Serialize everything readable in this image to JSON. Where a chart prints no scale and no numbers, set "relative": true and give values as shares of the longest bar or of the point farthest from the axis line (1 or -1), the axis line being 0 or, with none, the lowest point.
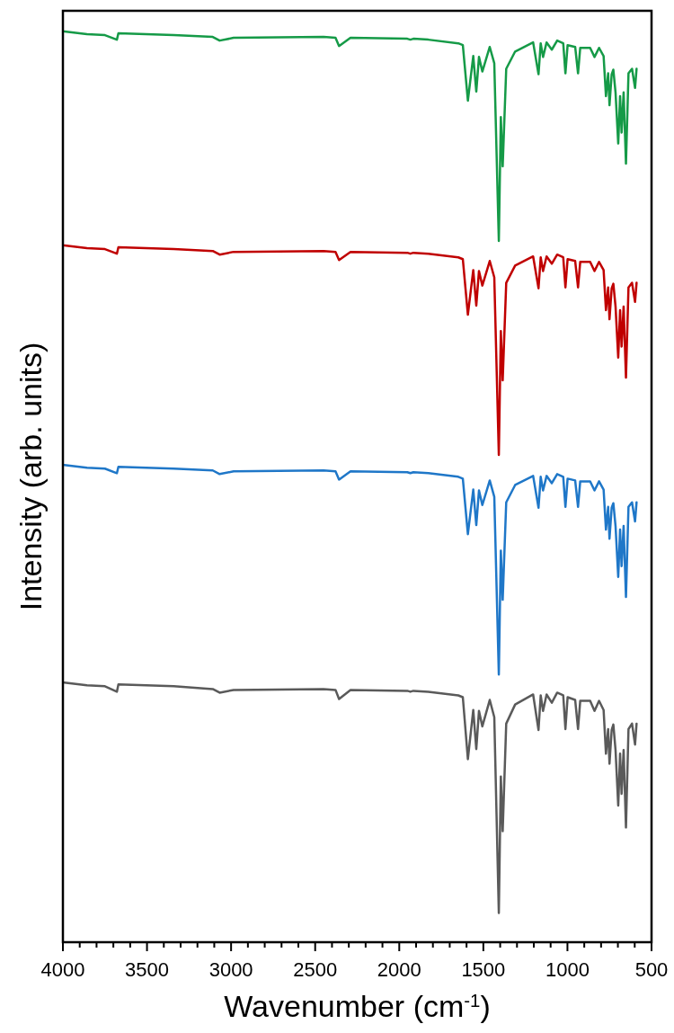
{
  "chart_data": {
    "type": "line",
    "relative": true,
    "xlabel": "Wavenumber (cm$^{-1}$)",
    "ylabel": "Intensity (arb. units)",
    "xlim": [
      4000,
      500
    ],
    "xticks": [
      4000,
      {
        "value": 3900,
        "label": null
      },
      {
        "value": 3800,
        "label": null
      },
      {
        "value": 3700,
        "label": null
      },
      {
        "value": 3600,
        "label": null
      },
      3500,
      {
        "value": 3400,
        "label": null
      },
      {
        "value": 3300,
        "label": null
      },
      {
        "value": 3200,
        "label": null
      },
      {
        "value": 3100,
        "label": null
      },
      3000,
      {
        "value": 2900,
        "label": null
      },
      {
        "value": 2800,
        "label": null
      },
      {
        "value": 2700,
        "label": null
      },
      {
        "value": 2600,
        "label": null
      },
      2500,
      {
        "value": 2400,
        "label": null
      },
      {
        "value": 2300,
        "label": null
      },
      {
        "value": 2200,
        "label": null
      },
      {
        "value": 2100,
        "label": null
      },
      2000,
      {
        "value": 1900,
        "label": null
      },
      {
        "value": 1800,
        "label": null
      },
      {
        "value": 1700,
        "label": null
      },
      {
        "value": 1600,
        "label": null
      },
      1500,
      {
        "value": 1400,
        "label": null
      },
      {
        "value": 1300,
        "label": null
      },
      {
        "value": 1200,
        "label": null
      },
      {
        "value": 1100,
        "label": null
      },
      1000,
      {
        "value": 900,
        "label": null
      },
      {
        "value": 800,
        "label": null
      },
      {
        "value": 700,
        "label": null
      },
      {
        "value": 600,
        "label": null
      },
      500
    ],
    "x": [
      3991,
      3857,
      3750,
      3679,
      3670,
      3341,
      3109,
      3068,
      2985,
      2450,
      2379,
      2358,
      2290,
      1952,
      1934,
      1916,
      1827,
      1649,
      1622,
      1592,
      1560,
      1542,
      1526,
      1506,
      1462,
      1435,
      1408,
      1396,
      1385,
      1364,
      1311,
      1204,
      1172,
      1159,
      1145,
      1124,
      1093,
      1061,
      1025,
      1012,
      999,
      954,
      937,
      924,
      865,
      839,
      812,
      785,
      771,
      758,
      750,
      737,
      727,
      714,
      698,
      687,
      678,
      666,
      652,
      637,
      616,
      598,
      589
    ],
    "grid": false,
    "marker": "none",
    "line_style": "solid",
    "series": [
      {
        "color": "#159a47",
        "values": [
          1.0,
          0.997,
          0.996,
          0.991,
          0.998,
          0.996,
          0.994,
          0.99,
          0.993,
          0.994,
          0.993,
          0.984,
          0.993,
          0.992,
          0.991,
          0.992,
          0.991,
          0.987,
          0.985,
          0.924,
          0.973,
          0.934,
          0.972,
          0.956,
          0.983,
          0.965,
          0.77,
          0.906,
          0.852,
          0.959,
          0.978,
          0.988,
          0.953,
          0.987,
          0.972,
          0.988,
          0.98,
          0.99,
          0.987,
          0.954,
          0.985,
          0.983,
          0.954,
          0.982,
          0.982,
          0.972,
          0.982,
          0.973,
          0.929,
          0.954,
          0.919,
          0.953,
          0.958,
          0.933,
          0.877,
          0.929,
          0.889,
          0.933,
          0.855,
          0.954,
          0.959,
          0.938,
          0.959
        ]
      },
      {
        "color": "#c00000",
        "values": [
          0.765,
          0.762,
          0.761,
          0.756,
          0.763,
          0.761,
          0.759,
          0.755,
          0.758,
          0.759,
          0.758,
          0.749,
          0.758,
          0.757,
          0.756,
          0.757,
          0.756,
          0.752,
          0.75,
          0.689,
          0.738,
          0.699,
          0.737,
          0.721,
          0.748,
          0.73,
          0.535,
          0.671,
          0.617,
          0.724,
          0.743,
          0.753,
          0.718,
          0.752,
          0.737,
          0.753,
          0.745,
          0.755,
          0.752,
          0.719,
          0.75,
          0.748,
          0.719,
          0.747,
          0.747,
          0.737,
          0.747,
          0.738,
          0.694,
          0.719,
          0.684,
          0.718,
          0.723,
          0.698,
          0.642,
          0.694,
          0.654,
          0.698,
          0.62,
          0.719,
          0.724,
          0.703,
          0.724
        ]
      },
      {
        "color": "#1f77c8",
        "values": [
          0.524,
          0.521,
          0.52,
          0.515,
          0.522,
          0.52,
          0.518,
          0.514,
          0.517,
          0.518,
          0.517,
          0.508,
          0.517,
          0.516,
          0.515,
          0.516,
          0.515,
          0.511,
          0.509,
          0.448,
          0.497,
          0.458,
          0.496,
          0.48,
          0.507,
          0.489,
          0.294,
          0.43,
          0.376,
          0.483,
          0.502,
          0.512,
          0.477,
          0.511,
          0.496,
          0.512,
          0.504,
          0.514,
          0.511,
          0.478,
          0.509,
          0.507,
          0.478,
          0.506,
          0.506,
          0.496,
          0.506,
          0.497,
          0.453,
          0.478,
          0.443,
          0.477,
          0.482,
          0.457,
          0.401,
          0.453,
          0.413,
          0.457,
          0.379,
          0.478,
          0.483,
          0.462,
          0.483
        ]
      },
      {
        "color": "#5a5a5a",
        "values": [
          0.285,
          0.282,
          0.281,
          0.275,
          0.283,
          0.281,
          0.278,
          0.274,
          0.277,
          0.278,
          0.277,
          0.267,
          0.277,
          0.276,
          0.275,
          0.276,
          0.275,
          0.271,
          0.269,
          0.201,
          0.255,
          0.212,
          0.254,
          0.237,
          0.266,
          0.247,
          0.032,
          0.182,
          0.122,
          0.24,
          0.261,
          0.272,
          0.233,
          0.271,
          0.254,
          0.272,
          0.263,
          0.274,
          0.271,
          0.234,
          0.269,
          0.266,
          0.234,
          0.265,
          0.265,
          0.254,
          0.265,
          0.255,
          0.207,
          0.234,
          0.196,
          0.233,
          0.239,
          0.211,
          0.15,
          0.207,
          0.163,
          0.211,
          0.126,
          0.234,
          0.24,
          0.217,
          0.24
        ]
      }
    ]
  }
}
